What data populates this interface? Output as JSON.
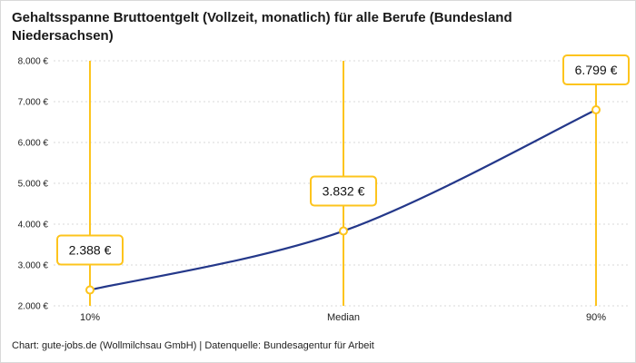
{
  "title": "Gehaltsspanne Bruttoentgelt (Vollzeit, monatlich) für alle Berufe (Bundesland Niedersachsen)",
  "footer": "Chart: gute-jobs.de (Wollmilchsau GmbH) | Datenquelle: Bundesagentur für Arbeit",
  "colors": {
    "line": "#24388a",
    "accent": "#fdc41d",
    "grid": "#d8d8d8",
    "marker_fill": "#ffffff",
    "box_fill": "#ffffff",
    "text": "#1a1a1a"
  },
  "chart_data": {
    "type": "line",
    "title": "Gehaltsspanne Bruttoentgelt (Vollzeit, monatlich) für alle Berufe (Bundesland Niedersachsen)",
    "categories": [
      "10%",
      "Median",
      "90%"
    ],
    "values": [
      2388,
      3832,
      6799
    ],
    "value_labels": [
      "2.388 €",
      "3.832 €",
      "6.799 €"
    ],
    "series_name": "Bruttoentgelt (Vollzeit, monatlich)",
    "y_ticks": [
      8000,
      7000,
      6000,
      5000,
      4000,
      3000,
      2000
    ],
    "y_tick_labels": [
      "8.000 €",
      "7.000 €",
      "6.000 €",
      "5.000 €",
      "4.000 €",
      "3.000 €",
      "2.000 €"
    ],
    "ylim": [
      2000,
      8000
    ],
    "xlabel": "",
    "ylabel": "",
    "grid": "horizontal-dashed",
    "legend": "none",
    "source": "Chart: gute-jobs.de (Wollmilchsau GmbH) | Datenquelle: Bundesagentur für Arbeit"
  }
}
